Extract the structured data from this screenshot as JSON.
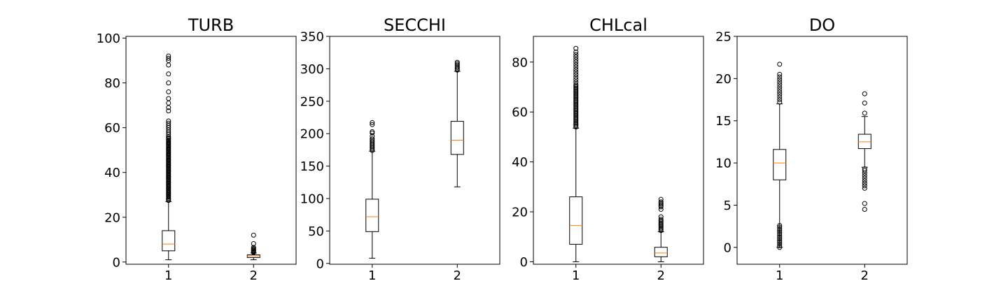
{
  "chart_data": [
    {
      "type": "boxplot",
      "title": "TURB",
      "categories": [
        "1",
        "2"
      ],
      "ylim": [
        -1.0,
        100.8
      ],
      "yticks": [
        0,
        20,
        40,
        60,
        80,
        100
      ],
      "boxes": [
        {
          "label": "1",
          "whisker_low": 1.0,
          "q1": 5.0,
          "median": 8.0,
          "q3": 14.0,
          "whisker_high": 27.0,
          "outliers": [
            27.5,
            28,
            28.5,
            29,
            29.5,
            30,
            30.5,
            31,
            31.5,
            32,
            32.5,
            33,
            33.5,
            34,
            34.5,
            35,
            35.5,
            36,
            36.5,
            37,
            37.5,
            38,
            38.5,
            39,
            39.5,
            40,
            40.5,
            41,
            41.5,
            42,
            42.5,
            43,
            43.5,
            44,
            44.5,
            45,
            45.5,
            46,
            46.5,
            47,
            47.5,
            48,
            48.5,
            49,
            49.5,
            50,
            50.5,
            51,
            51.5,
            52,
            52.5,
            53,
            53.5,
            54,
            54.5,
            55,
            55.5,
            56,
            57,
            58,
            59,
            60,
            61,
            62,
            63,
            67.5,
            69,
            71,
            73,
            76,
            80,
            84,
            88,
            90,
            91,
            92
          ]
        },
        {
          "label": "2",
          "whisker_low": 1.0,
          "q1": 2.0,
          "median": 2.7,
          "q3": 3.2,
          "whisker_high": 4.0,
          "outliers": [
            4.3,
            4.6,
            5.0,
            5.3,
            5.7,
            6.0,
            6.5,
            8.2,
            12.0
          ]
        }
      ]
    },
    {
      "type": "boxplot",
      "title": "SECCHI",
      "categories": [
        "1",
        "2"
      ],
      "ylim": [
        -1.3,
        350
      ],
      "yticks": [
        0,
        50,
        100,
        150,
        200,
        250,
        300,
        350
      ],
      "boxes": [
        {
          "label": "1",
          "whisker_low": 8.0,
          "q1": 49.0,
          "median": 72.0,
          "q3": 99.0,
          "whisker_high": 173.0,
          "outliers": [
            174,
            176,
            178,
            180,
            182,
            184,
            186,
            188,
            190,
            192,
            196,
            201,
            203,
            214,
            217
          ]
        },
        {
          "label": "2",
          "whisker_low": 118.0,
          "q1": 168.0,
          "median": 190.0,
          "q3": 219.0,
          "whisker_high": 296.0,
          "outliers": [
            298,
            300,
            302,
            304,
            306,
            308,
            310
          ]
        }
      ]
    },
    {
      "type": "boxplot",
      "title": "CHLcal",
      "categories": [
        "1",
        "2"
      ],
      "ylim": [
        -1.0,
        90.3
      ],
      "yticks": [
        0,
        20,
        40,
        60,
        80
      ],
      "boxes": [
        {
          "label": "1",
          "whisker_low": 0.0,
          "q1": 7.0,
          "median": 14.5,
          "q3": 26.0,
          "whisker_high": 53.5,
          "outliers": [
            54,
            54.5,
            55,
            55.5,
            56,
            56.5,
            57,
            57.5,
            58,
            58.5,
            59,
            59.5,
            60,
            60.5,
            61,
            61.5,
            62,
            62.5,
            63,
            63.5,
            64,
            64.5,
            65,
            65.5,
            66,
            66.5,
            67,
            67.5,
            68,
            68.5,
            69,
            69.5,
            70,
            70.5,
            71,
            72,
            73,
            74,
            75,
            76,
            77,
            78,
            79,
            80,
            81,
            82,
            83,
            84,
            85.5
          ]
        },
        {
          "label": "2",
          "whisker_low": 0.0,
          "q1": 2.0,
          "median": 3.5,
          "q3": 5.8,
          "whisker_high": 12.0,
          "outliers": [
            12.5,
            13,
            13.5,
            14,
            14.5,
            15,
            15.5,
            16,
            16.5,
            17,
            18,
            21,
            22,
            22.5,
            23,
            23.5,
            24,
            25
          ]
        }
      ]
    },
    {
      "type": "boxplot",
      "title": "DO",
      "categories": [
        "1",
        "2"
      ],
      "ylim": [
        -2.0,
        25.0
      ],
      "yticks": [
        0,
        5,
        10,
        15,
        20,
        25
      ],
      "boxes": [
        {
          "label": "1",
          "whisker_low": 0.0,
          "q1": 8.0,
          "median": 10.0,
          "q3": 11.6,
          "whisker_high": 17.0,
          "outliers": [
            0,
            0.2,
            0.4,
            0.6,
            0.8,
            1.0,
            1.2,
            1.4,
            1.6,
            1.8,
            2.0,
            2.2,
            2.4,
            2.6,
            17.2,
            17.5,
            17.8,
            18.1,
            18.4,
            18.7,
            19.0,
            19.3,
            19.6,
            19.9,
            20.2,
            20.5,
            21.7
          ]
        },
        {
          "label": "2",
          "whisker_low": 9.5,
          "q1": 11.7,
          "median": 12.5,
          "q3": 13.4,
          "whisker_high": 15.5,
          "outliers": [
            4.5,
            5.2,
            7.0,
            7.3,
            7.6,
            7.9,
            8.2,
            8.5,
            8.8,
            9.1,
            9.3,
            15.9,
            17.1,
            18.2
          ]
        }
      ]
    }
  ]
}
